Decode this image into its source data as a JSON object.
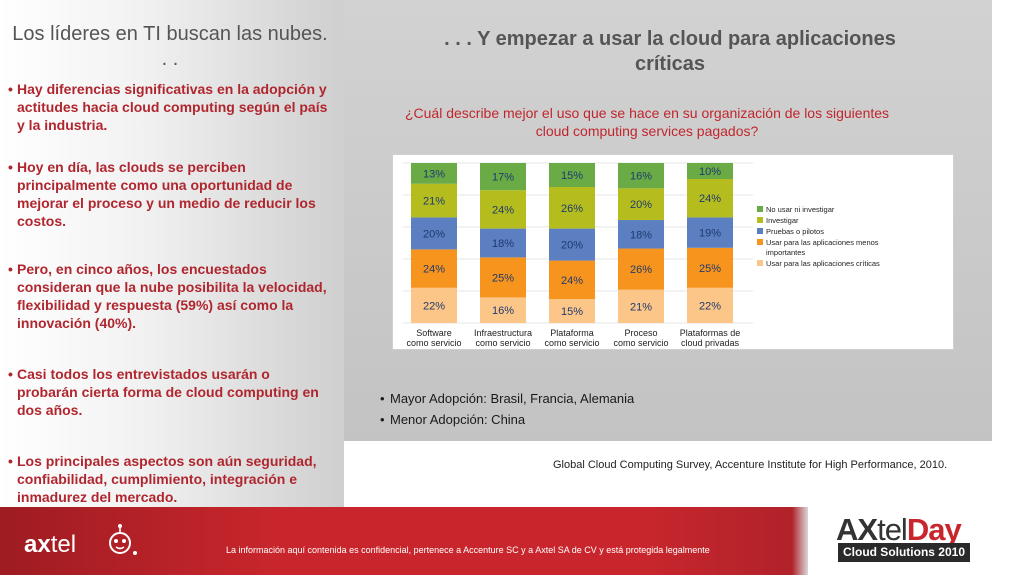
{
  "left": {
    "title": "Los líderes en TI buscan las nubes. . .",
    "bullets": [
      "Hay diferencias significativas en la adopción y actitudes hacia cloud computing según el país y la industria.",
      "Hoy en día, las clouds se perciben principalmente como una oportunidad de mejorar el proceso y un medio de reducir los costos.",
      "Pero, en cinco años, los encuestados consideran que la nube posibilita la velocidad, flexibilidad y respuesta (59%) así como la innovación (40%).",
      "Casi todos los entrevistados usarán o probarán cierta forma de cloud computing en dos años.",
      "Los principales aspectos son aún seguridad, confiabilidad, cumplimiento, integración e inmadurez del mercado."
    ]
  },
  "right": {
    "title": ". . . Y empezar a usar la cloud para aplicaciones críticas",
    "question": "¿Cuál describe mejor el uso que se hace en su organización de los siguientes cloud computing services pagados?",
    "adoption": [
      "Mayor Adopción: Brasil, Francia, Alemania",
      "Menor Adopción: China"
    ],
    "source": "Global Cloud Computing Survey, Accenture Institute for High Performance, 2010."
  },
  "chart_data": {
    "type": "bar",
    "stacked": true,
    "categories": [
      [
        "Software",
        "como servicio"
      ],
      [
        "Infraestructura",
        "como servicio"
      ],
      [
        "Plataforma",
        "como servicio"
      ],
      [
        "Proceso",
        "como servicio"
      ],
      [
        "Plataformas de",
        "cloud privadas"
      ]
    ],
    "series": [
      {
        "name": "Usar para las aplicaciones críticas",
        "color": "#fcc689",
        "values": [
          22,
          16,
          15,
          21,
          22
        ]
      },
      {
        "name": "Usar para las aplicaciones menos importantes",
        "color": "#f7941d",
        "values": [
          24,
          25,
          24,
          26,
          25
        ]
      },
      {
        "name": "Pruebas o pilotos",
        "color": "#5b7fc0",
        "values": [
          20,
          18,
          20,
          18,
          19
        ]
      },
      {
        "name": "Investigar",
        "color": "#b5bd1e",
        "values": [
          21,
          24,
          26,
          20,
          24
        ]
      },
      {
        "name": "No usar ni investigar",
        "color": "#6aab45",
        "values": [
          13,
          17,
          15,
          16,
          10
        ]
      }
    ],
    "legend_order": [
      "No usar ni investigar",
      "Investigar",
      "Pruebas o pilotos",
      "Usar para las aplicaciones menos importantes",
      "Usar para las aplicaciones críticas"
    ],
    "legend_placement": "right",
    "grid": true
  },
  "footer": {
    "notice": "La información aquí  contenida es confidencial, pertenece a Accenture SC y a Axtel SA de CV y está protegida legalmente",
    "axtel_prefix": "ax",
    "axtel_suffix": "tel",
    "day_ax": "AX",
    "day_tel": "tel",
    "day_day": "Day",
    "day_sub": "Cloud Solutions 2010"
  }
}
